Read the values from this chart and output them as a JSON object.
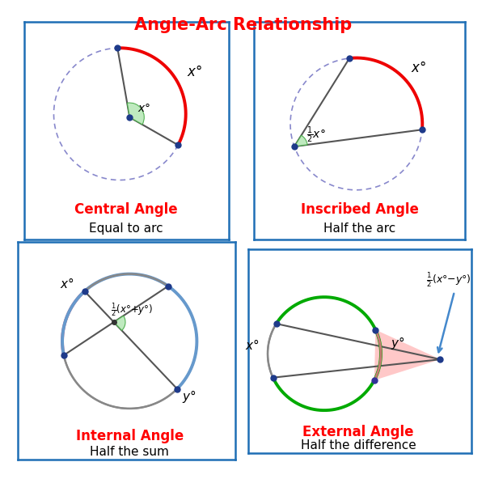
{
  "title": "Angle-Arc Relationship",
  "title_color": "#ff0000",
  "title_fontsize": 15,
  "background_color": "#ffffff",
  "box_color": "#1e6eb5",
  "panel_labels": {
    "central": [
      "Central Angle",
      "Equal to arc"
    ],
    "inscribed": [
      "Inscribed Angle",
      "Half the arc"
    ],
    "internal": [
      "Internal Angle",
      "Half the sum"
    ],
    "external": [
      "External Angle",
      "Half the difference"
    ]
  },
  "label_color_red": "#ff0000",
  "label_color_black": "#000000",
  "dot_color_blue": "#1e3a8a",
  "dot_color_black": "#000000",
  "arc_red": "#ee0000",
  "arc_gray": "#888888",
  "arc_pink": "#cc7777",
  "arc_green": "#00aa00",
  "angle_fill": "#aaddaa",
  "dashed_circle_color": "#8888cc",
  "line_color": "#555555"
}
